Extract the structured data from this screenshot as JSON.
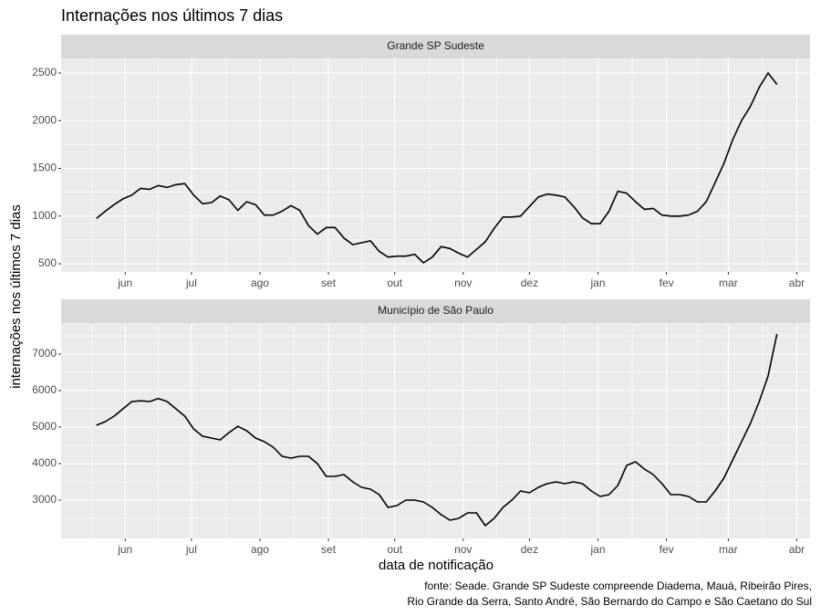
{
  "title": "Internações nos últimos 7 dias",
  "y_label": "internações nos últimos 7 dias",
  "x_label": "data de notificação",
  "caption": [
    "fonte: Seade. Grande SP Sudeste compreende Diadema, Mauá, Ribeirão Pires,",
    "Rio Grande da Serra, Santo André, São Bernardo do Campo e São Caetano do Sul"
  ],
  "chart_data": [
    {
      "type": "line",
      "title": "Grande SP Sudeste",
      "color": "#000000",
      "grid": true,
      "x": [
        18,
        22,
        26,
        30,
        34,
        38,
        42,
        46,
        50,
        54,
        58,
        62,
        66,
        70,
        74,
        78,
        82,
        86,
        90,
        94,
        98,
        102,
        106,
        110,
        114,
        118,
        122,
        126,
        130,
        134,
        138,
        142,
        146,
        150,
        154,
        158,
        162,
        166,
        170,
        174,
        178,
        182,
        186,
        190,
        194,
        198,
        202,
        206,
        210,
        214,
        218,
        222,
        226,
        230,
        234,
        238,
        242,
        246,
        250,
        254,
        258,
        262,
        266,
        270,
        274,
        278,
        282,
        286,
        290,
        294,
        298,
        302,
        306,
        310,
        314,
        318,
        322,
        326
      ],
      "values": [
        975,
        1050,
        1120,
        1180,
        1220,
        1290,
        1280,
        1320,
        1300,
        1330,
        1340,
        1220,
        1130,
        1140,
        1210,
        1170,
        1060,
        1150,
        1120,
        1010,
        1010,
        1050,
        1110,
        1060,
        900,
        810,
        880,
        880,
        770,
        700,
        720,
        740,
        630,
        570,
        580,
        580,
        600,
        510,
        570,
        680,
        660,
        610,
        570,
        650,
        730,
        870,
        990,
        990,
        1000,
        1100,
        1200,
        1230,
        1220,
        1200,
        1100,
        980,
        920,
        920,
        1050,
        1260,
        1240,
        1150,
        1070,
        1080,
        1010,
        1000,
        1000,
        1010,
        1050,
        1150,
        1350,
        1550,
        1800,
        2000,
        2150,
        2350,
        2500,
        2380
      ],
      "xlim": [
        2,
        341
      ],
      "xticks": [
        {
          "value": 31,
          "label": "jun"
        },
        {
          "value": 61,
          "label": "jul"
        },
        {
          "value": 92,
          "label": "ago"
        },
        {
          "value": 123,
          "label": "set"
        },
        {
          "value": 153,
          "label": "out"
        },
        {
          "value": 184,
          "label": "nov"
        },
        {
          "value": 214,
          "label": "dez"
        },
        {
          "value": 245,
          "label": "jan"
        },
        {
          "value": 276,
          "label": "fev"
        },
        {
          "value": 304,
          "label": "mar"
        },
        {
          "value": 335,
          "label": "abr"
        }
      ],
      "ylim": [
        414,
        2653
      ],
      "yticks": [
        500,
        1000,
        1500,
        2000,
        2500
      ]
    },
    {
      "type": "line",
      "title": "Município de São Paulo",
      "color": "#000000",
      "grid": true,
      "x": [
        18,
        22,
        26,
        30,
        34,
        38,
        42,
        46,
        50,
        54,
        58,
        62,
        66,
        70,
        74,
        78,
        82,
        86,
        90,
        94,
        98,
        102,
        106,
        110,
        114,
        118,
        122,
        126,
        130,
        134,
        138,
        142,
        146,
        150,
        154,
        158,
        162,
        166,
        170,
        174,
        178,
        182,
        186,
        190,
        194,
        198,
        202,
        206,
        210,
        214,
        218,
        222,
        226,
        230,
        234,
        238,
        242,
        246,
        250,
        254,
        258,
        262,
        266,
        270,
        274,
        278,
        282,
        286,
        290,
        294,
        298,
        302,
        306,
        310,
        314,
        318,
        322,
        326
      ],
      "values": [
        5050,
        5150,
        5300,
        5500,
        5700,
        5720,
        5700,
        5780,
        5700,
        5500,
        5300,
        4950,
        4750,
        4700,
        4650,
        4850,
        5020,
        4900,
        4700,
        4600,
        4450,
        4200,
        4150,
        4200,
        4200,
        4000,
        3650,
        3650,
        3700,
        3500,
        3350,
        3300,
        3150,
        2800,
        2850,
        3000,
        3000,
        2950,
        2800,
        2600,
        2450,
        2500,
        2650,
        2650,
        2300,
        2500,
        2800,
        3000,
        3250,
        3200,
        3350,
        3450,
        3500,
        3450,
        3500,
        3450,
        3250,
        3100,
        3150,
        3400,
        3950,
        4050,
        3850,
        3700,
        3450,
        3150,
        3150,
        3100,
        2950,
        2950,
        3250,
        3600,
        4100,
        4600,
        5100,
        5700,
        6400,
        7550
      ],
      "xlim": [
        2,
        341
      ],
      "xticks": [
        {
          "value": 31,
          "label": "jun"
        },
        {
          "value": 61,
          "label": "jul"
        },
        {
          "value": 92,
          "label": "ago"
        },
        {
          "value": 123,
          "label": "set"
        },
        {
          "value": 153,
          "label": "out"
        },
        {
          "value": 184,
          "label": "nov"
        },
        {
          "value": 214,
          "label": "dez"
        },
        {
          "value": 245,
          "label": "jan"
        },
        {
          "value": 276,
          "label": "fev"
        },
        {
          "value": 304,
          "label": "mar"
        },
        {
          "value": 335,
          "label": "abr"
        }
      ],
      "ylim": [
        1950,
        7850
      ],
      "yticks": [
        3000,
        4000,
        5000,
        6000,
        7000
      ]
    }
  ]
}
